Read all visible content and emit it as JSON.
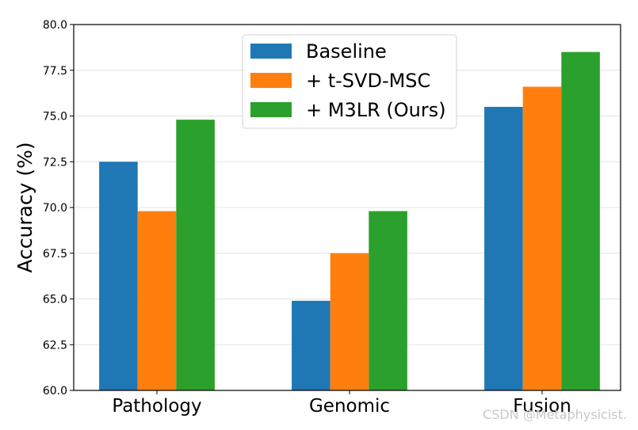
{
  "chart_data": {
    "type": "bar",
    "categories": [
      "Pathology",
      "Genomic",
      "Fusion"
    ],
    "series": [
      {
        "name": "Baseline",
        "values": [
          72.5,
          64.9,
          75.5
        ],
        "color": "#1f77b4"
      },
      {
        "name": "+ t-SVD-MSC",
        "values": [
          69.8,
          67.5,
          76.6
        ],
        "color": "#ff7f0e"
      },
      {
        "name": "+ M3LR (Ours)",
        "values": [
          74.8,
          69.8,
          78.5
        ],
        "color": "#2ca02c"
      }
    ],
    "title": "",
    "xlabel": "",
    "ylabel": "Accuracy (%)",
    "ylim": [
      60,
      80
    ],
    "yticks": [
      "60.0",
      "62.5",
      "65.0",
      "67.5",
      "70.0",
      "72.5",
      "75.0",
      "77.5",
      "80.0"
    ],
    "grid": true,
    "legend_position": "top-center"
  },
  "watermark": "CSDN @Metaphysicist."
}
